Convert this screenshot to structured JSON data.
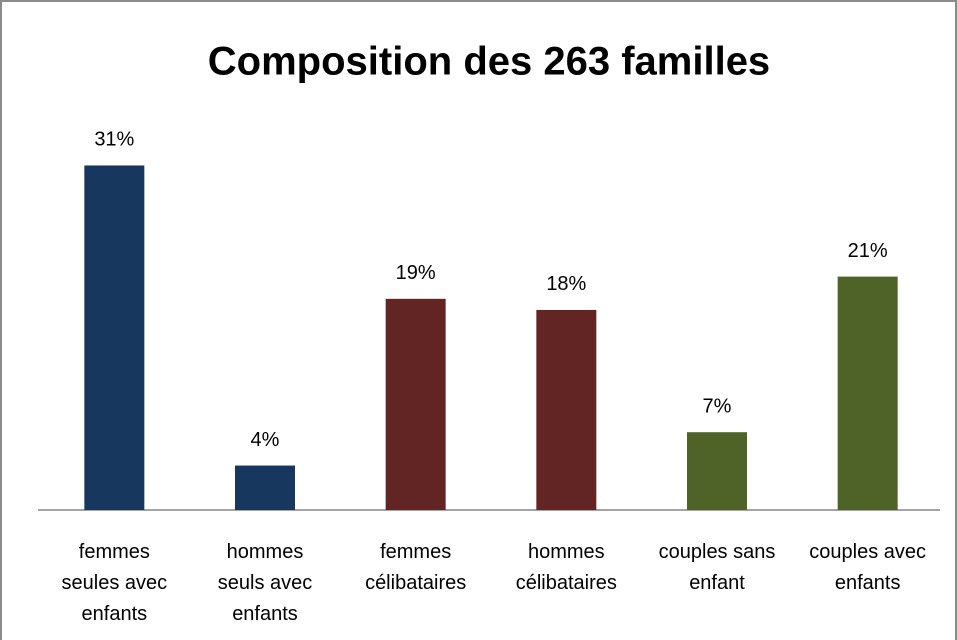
{
  "chart_data": {
    "type": "bar",
    "title": "Composition des 263 familles",
    "categories": [
      "femmes seules avec enfants",
      "hommes seuls avec enfants",
      "femmes célibataires",
      "hommes célibataires",
      "couples sans enfant",
      "couples avec enfants"
    ],
    "values": [
      31,
      4,
      19,
      18,
      7,
      21
    ],
    "value_labels": [
      "31%",
      "4%",
      "19%",
      "18%",
      "7%",
      "21%"
    ],
    "colors": [
      "#17375e",
      "#17375e",
      "#632523",
      "#632523",
      "#4f6228",
      "#4f6228"
    ],
    "ylim": [
      0,
      35
    ]
  }
}
